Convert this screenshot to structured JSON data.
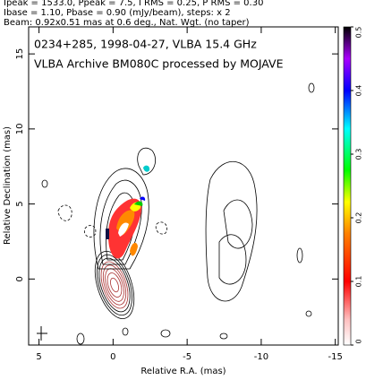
{
  "chart_data": {
    "type": "image",
    "header": [
      "Ipeak = 1533.0, Ppeak = 7.5, I RMS = 0.25, P RMS = 0.30",
      "Ibase = 1.10, Pbase = 0.90 (mJy/beam), steps: x 2",
      "Beam: 0.92x0.51 mas at 0.6 deg., Nat. Wgt. (no taper)"
    ],
    "title": "0234+285, 1998-04-27, VLBA 15.4 GHz",
    "subtitle": "VLBA Archive BM080C processed by MOJAVE",
    "xlabel": "Relative R.A. (mas)",
    "ylabel": "Relative Declination (mas)",
    "xlim": [
      5.7,
      -15.2
    ],
    "xticks": [
      5,
      0,
      -5,
      -10,
      -15
    ],
    "ylim": [
      -4.4,
      16.8
    ],
    "yticks": [
      0,
      5,
      10,
      15
    ],
    "colorbar_lim": [
      0,
      0.5
    ],
    "colorbar_ticks": [
      0,
      0.1,
      0.2,
      0.3,
      0.4,
      0.5
    ]
  }
}
